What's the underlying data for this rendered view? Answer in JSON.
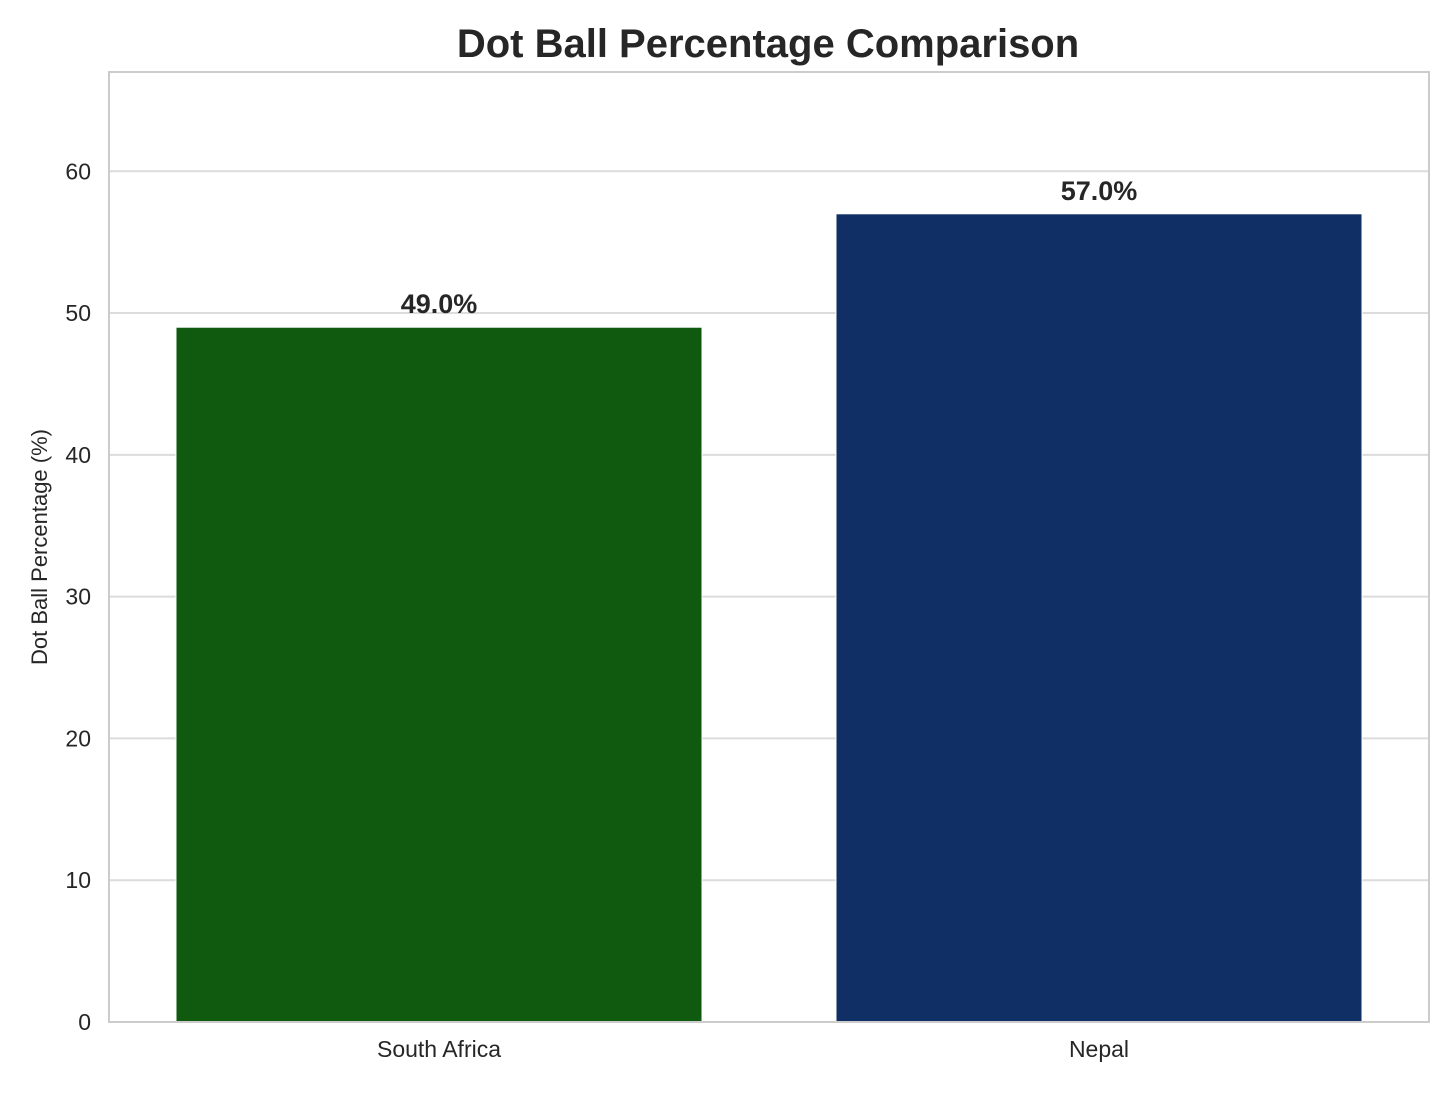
{
  "chart_data": {
    "type": "bar",
    "title": "Dot Ball Percentage Comparison",
    "xlabel": "",
    "ylabel": "Dot Ball Percentage (%)",
    "categories": [
      "South Africa",
      "Nepal"
    ],
    "values": [
      49.0,
      57.0
    ],
    "value_labels": [
      "49.0%",
      "57.0%"
    ],
    "colors": [
      "#0f5a0f",
      "#102f65"
    ],
    "ylim": [
      0,
      67
    ],
    "yticks": [
      0,
      10,
      20,
      30,
      40,
      50,
      60
    ],
    "grid": true,
    "legend": "none"
  }
}
